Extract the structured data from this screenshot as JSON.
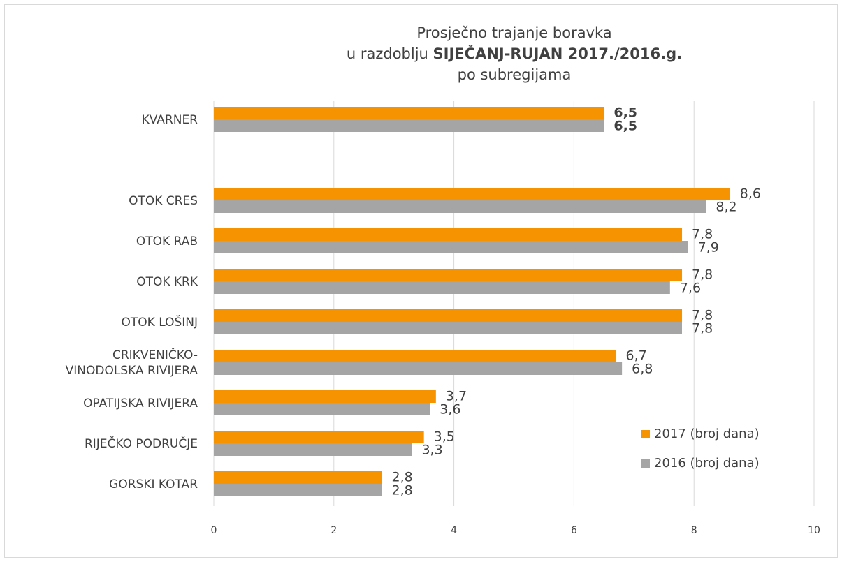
{
  "chart_data": {
    "type": "bar",
    "orientation": "horizontal",
    "title": {
      "line1": "Prosječno trajanje boravka",
      "line2": "u razdoblju",
      "line2_bold": "SIJEČANJ-RUJAN 2017./2016.g.",
      "line3": "po subregijama"
    },
    "categories": [
      "KVARNER",
      null,
      "OTOK CRES",
      "OTOK RAB",
      "OTOK KRK",
      "OTOK LOŠINJ",
      "CRIKVENIČKO-\nVINODOLSKA RIVIJERA",
      "OPATIJSKA RIVIJERA",
      "RIJEČKO PODRUČJE",
      "GORSKI KOTAR"
    ],
    "series": [
      {
        "name": "2017 (broj dana)",
        "color": "#f59300",
        "values": [
          6.5,
          null,
          8.6,
          7.8,
          7.8,
          7.8,
          6.7,
          3.7,
          3.5,
          2.8
        ],
        "value_labels": [
          "6,5",
          null,
          "8,6",
          "7,8",
          "7,8",
          "7,8",
          "6,7",
          "3,7",
          "3,5",
          "2,8"
        ]
      },
      {
        "name": "2016 (broj dana)",
        "color": "#a5a5a5",
        "values": [
          6.5,
          null,
          8.2,
          7.9,
          7.6,
          7.8,
          6.8,
          3.6,
          3.3,
          2.8
        ],
        "value_labels": [
          "6,5",
          null,
          "8,2",
          "7,9",
          "7,6",
          "7,8",
          "6,8",
          "3,6",
          "3,3",
          "2,8"
        ]
      }
    ],
    "xlim": [
      0,
      10
    ],
    "xticks": [
      0,
      2,
      4,
      6,
      8,
      10
    ],
    "grid": true,
    "legend": "lower right"
  }
}
